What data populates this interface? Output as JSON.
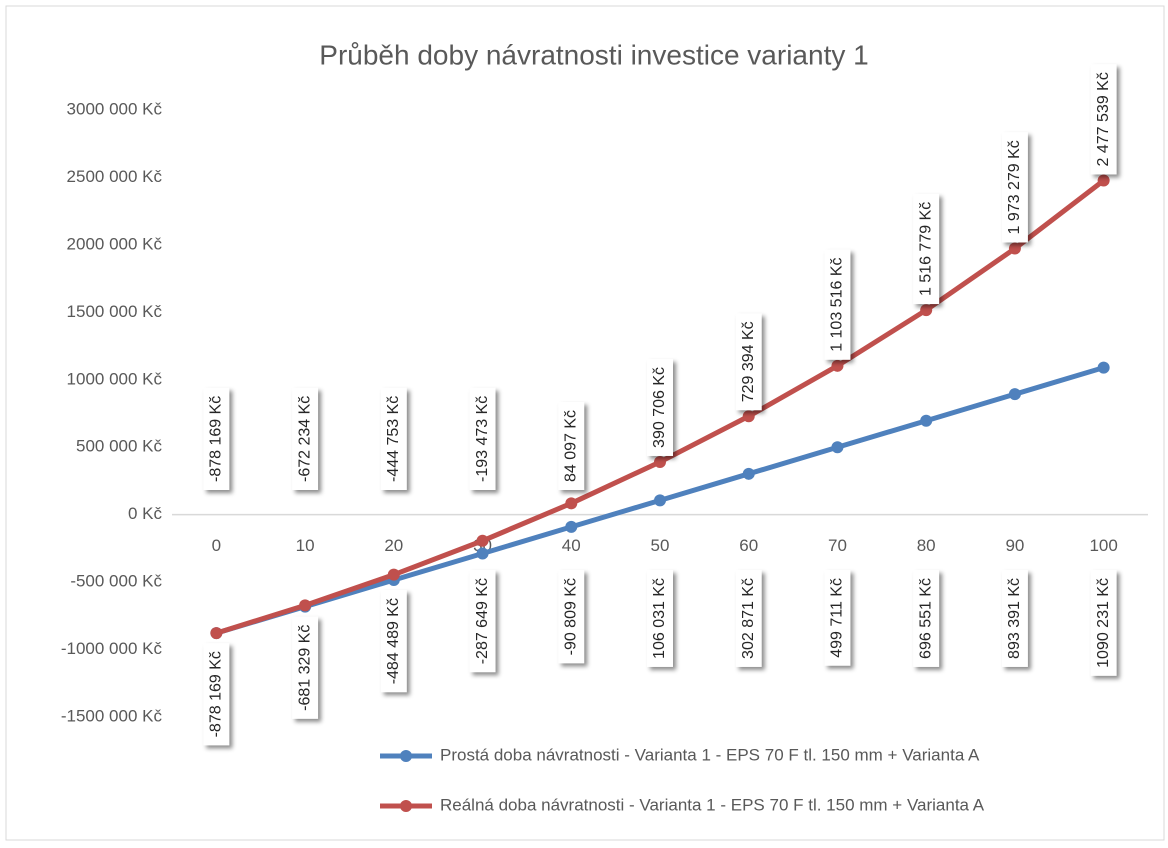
{
  "chart_data": {
    "type": "line",
    "title": "Průběh doby návratnosti investice varianty 1",
    "categories": [
      "0",
      "10",
      "20",
      "30",
      "40",
      "50",
      "60",
      "70",
      "80",
      "90",
      "100"
    ],
    "series": [
      {
        "name": "Prostá doba návratnosti -  Varianta 1 - EPS 70 F tl. 150 mm + Varianta A",
        "color": "#4f81bd",
        "label_position": "below",
        "values": [
          -878169,
          -681329,
          -484489,
          -287649,
          -90809,
          106031,
          302871,
          499711,
          696551,
          893391,
          1090231
        ],
        "value_labels": [
          "-878 169 Kč",
          "-681 329 Kč",
          "-484 489 Kč",
          "-287 649 Kč",
          "-90 809 Kč",
          "106 031 Kč",
          "302 871 Kč",
          "499 711 Kč",
          "696 551 Kč",
          "893 391 Kč",
          "1090 231 Kč"
        ]
      },
      {
        "name": "Reálná doba návratnosti - Varianta 1 - EPS 70 F tl. 150 mm + Varianta A",
        "color": "#c0504d",
        "label_position": "above",
        "values": [
          -878169,
          -672234,
          -444753,
          -193473,
          84097,
          390706,
          729394,
          1103516,
          1516779,
          1973279,
          2477539
        ],
        "value_labels": [
          "-878 169 Kč",
          "-672 234 Kč",
          "-444 753 Kč",
          "-193 473 Kč",
          "84 097 Kč",
          "390 706 Kč",
          "729 394 Kč",
          "1 103 516 Kč",
          "1 516 779 Kč",
          "1 973 279 Kč",
          "2 477 539 Kč"
        ]
      }
    ],
    "ylim": [
      -1500000,
      3000000
    ],
    "yticks": [
      {
        "value": -1500000,
        "label": "-1500 000 Kč"
      },
      {
        "value": -1000000,
        "label": "-1000 000 Kč"
      },
      {
        "value": -500000,
        "label": "-500 000 Kč"
      },
      {
        "value": 0,
        "label": "0 Kč"
      },
      {
        "value": 500000,
        "label": "500 000 Kč"
      },
      {
        "value": 1000000,
        "label": "1000 000 Kč"
      },
      {
        "value": 1500000,
        "label": "1500 000 Kč"
      },
      {
        "value": 2000000,
        "label": "2000 000 Kč"
      },
      {
        "value": 2500000,
        "label": "2500 000 Kč"
      },
      {
        "value": 3000000,
        "label": "3000 000 Kč"
      }
    ],
    "grid": false,
    "legend": "bottom"
  }
}
